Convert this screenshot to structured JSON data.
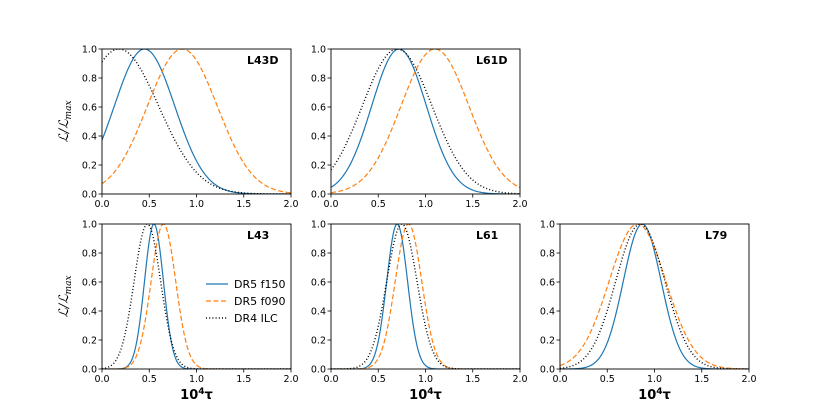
{
  "chart_data": {
    "type": "line",
    "x_range": [
      0.0,
      2.0
    ],
    "y_range": [
      0.0,
      1.0
    ],
    "x_ticks": [
      "0.0",
      "0.5",
      "1.0",
      "1.5",
      "2.0"
    ],
    "y_ticks": [
      "0.0",
      "0.2",
      "0.4",
      "0.6",
      "0.8",
      "1.0"
    ],
    "ylabel": "ℒ/ℒ",
    "ylabel_sub": "max",
    "xlabel_base": "10",
    "xlabel_exp": "4",
    "xlabel_sym": "τ",
    "series_styles": [
      {
        "name": "DR5 f150",
        "color": "#1f77b4",
        "dash": ""
      },
      {
        "name": "DR5 f090",
        "color": "#ff7f0e",
        "dash": "5,2.5"
      },
      {
        "name": "DR4 ILC",
        "color": "#000000",
        "dash": "1,2.2"
      }
    ],
    "legend": {
      "placement": "inside-right-of-L43",
      "entries": [
        "DR5 f150",
        "DR5 f090",
        "DR4 ILC"
      ]
    },
    "panels": [
      {
        "title": "L43D",
        "row": 0,
        "col": 0,
        "show_ylabel": true,
        "show_xlabel": false,
        "series": [
          {
            "name": "DR5 f150",
            "mu": 0.45,
            "sigma": 0.32
          },
          {
            "name": "DR5 f090",
            "mu": 0.85,
            "sigma": 0.37
          },
          {
            "name": "DR4 ILC",
            "mu": 0.18,
            "sigma": 0.42
          }
        ]
      },
      {
        "title": "L61D",
        "row": 0,
        "col": 1,
        "show_ylabel": false,
        "show_xlabel": false,
        "series": [
          {
            "name": "DR5 f150",
            "mu": 0.72,
            "sigma": 0.29
          },
          {
            "name": "DR5 f090",
            "mu": 1.1,
            "sigma": 0.36
          },
          {
            "name": "DR4 ILC",
            "mu": 0.7,
            "sigma": 0.37
          }
        ]
      },
      {
        "title": "L43",
        "row": 1,
        "col": 0,
        "show_ylabel": true,
        "show_xlabel": true,
        "series": [
          {
            "name": "DR5 f150",
            "mu": 0.55,
            "sigma": 0.1
          },
          {
            "name": "DR5 f090",
            "mu": 0.65,
            "sigma": 0.13
          },
          {
            "name": "DR4 ILC",
            "mu": 0.48,
            "sigma": 0.14
          }
        ]
      },
      {
        "title": "L61",
        "row": 1,
        "col": 1,
        "show_ylabel": false,
        "show_xlabel": true,
        "series": [
          {
            "name": "DR5 f150",
            "mu": 0.7,
            "sigma": 0.11
          },
          {
            "name": "DR5 f090",
            "mu": 0.82,
            "sigma": 0.14
          },
          {
            "name": "DR4 ILC",
            "mu": 0.75,
            "sigma": 0.16
          }
        ]
      },
      {
        "title": "L79",
        "row": 1,
        "col": 2,
        "show_ylabel": false,
        "show_xlabel": true,
        "series": [
          {
            "name": "DR5 f150",
            "mu": 0.87,
            "sigma": 0.2
          },
          {
            "name": "DR5 f090",
            "mu": 0.82,
            "sigma": 0.3
          },
          {
            "name": "DR4 ILC",
            "mu": 0.85,
            "sigma": 0.26
          }
        ]
      }
    ]
  }
}
